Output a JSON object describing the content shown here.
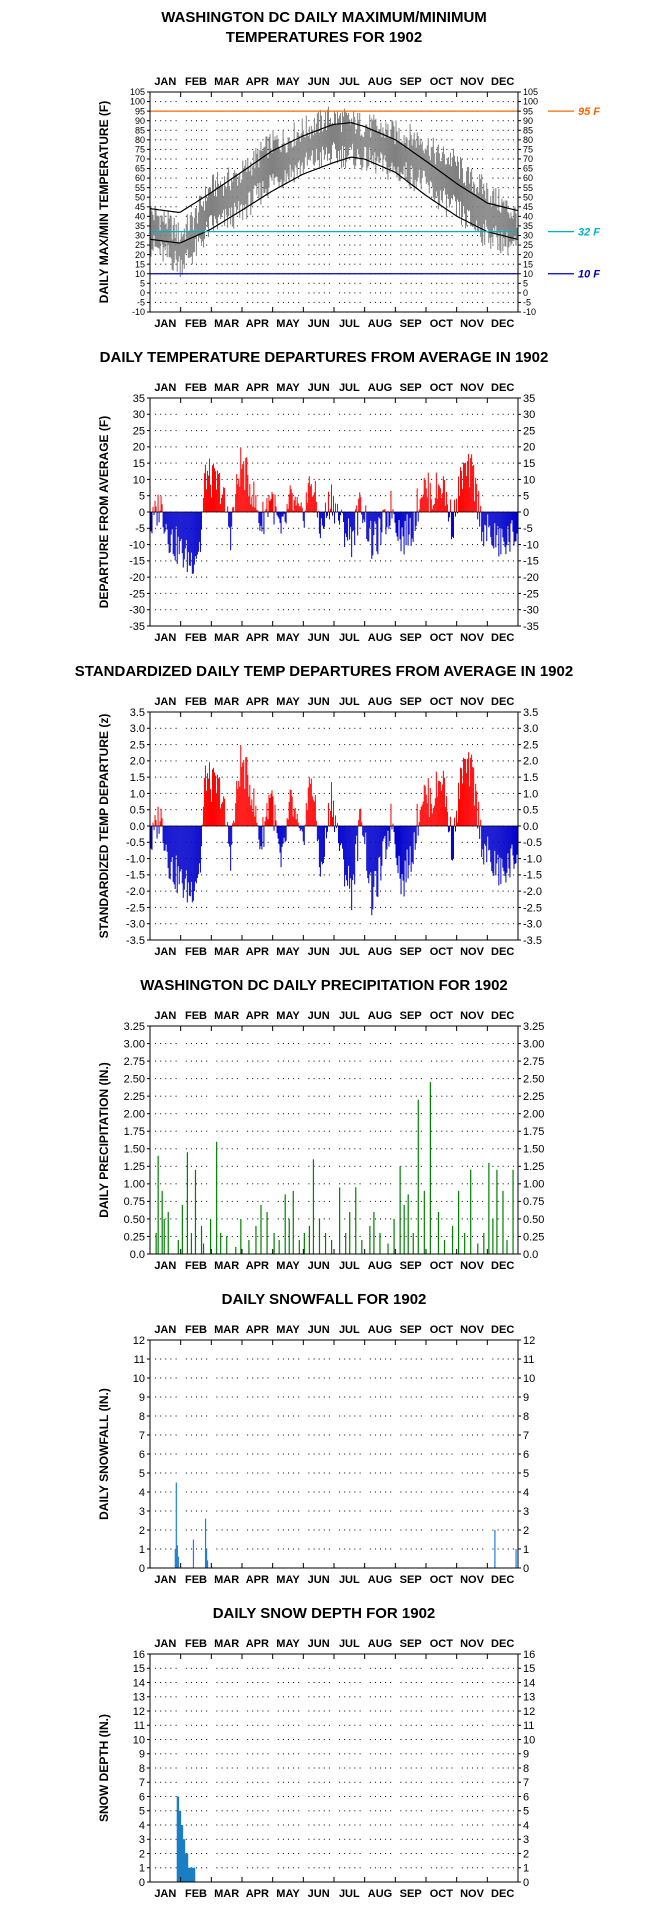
{
  "colors": {
    "axis": "#000000",
    "grid_dot": "#000000",
    "max_series": "#808080",
    "normal_lines": "#000000",
    "ref_95": "#ff6600",
    "ref_32": "#00b0c8",
    "ref_10": "#0000c0",
    "positive": "#ff0000",
    "negative": "#0000cc",
    "precip": "#008000",
    "snow": "#1e7fd8",
    "depth": "#1a7ec4"
  },
  "months": [
    "JAN",
    "FEB",
    "MAR",
    "APR",
    "MAY",
    "JUN",
    "JUL",
    "AUG",
    "SEP",
    "OCT",
    "NOV",
    "DEC"
  ],
  "chart_data": [
    {
      "id": "temps",
      "type": "line",
      "title_lines": [
        "WASHINGTON DC DAILY MAXIMUM/MINIMUM",
        "TEMPERATURES FOR 1902"
      ],
      "ylabel": "DAILY MAX/MIN TEMPERATURE (F)",
      "ylim": [
        -10,
        105
      ],
      "ytick_step": 5,
      "yticks": [
        "-10",
        "-5",
        "0",
        "5",
        "10",
        "15",
        "20",
        "25",
        "30",
        "35",
        "40",
        "45",
        "50",
        "55",
        "60",
        "65",
        "70",
        "75",
        "80",
        "85",
        "90",
        "95",
        "100",
        "105"
      ],
      "reference_lines": [
        {
          "value": 95,
          "label": "95 F",
          "color_key": "ref_95"
        },
        {
          "value": 32,
          "label": "32 F",
          "color_key": "ref_32"
        },
        {
          "value": 10,
          "label": "10 F",
          "color_key": "ref_10"
        }
      ],
      "daily_range_keypoints": {
        "day": [
          1,
          15,
          30,
          45,
          60,
          75,
          90,
          105,
          120,
          135,
          150,
          165,
          180,
          195,
          210,
          225,
          240,
          255,
          270,
          285,
          300,
          315,
          330,
          345,
          365
        ],
        "max": [
          42,
          38,
          30,
          40,
          55,
          58,
          62,
          70,
          78,
          80,
          85,
          88,
          92,
          90,
          88,
          86,
          84,
          82,
          80,
          72,
          70,
          60,
          55,
          48,
          40
        ],
        "min": [
          25,
          20,
          15,
          22,
          35,
          38,
          42,
          50,
          58,
          62,
          66,
          70,
          72,
          72,
          70,
          68,
          64,
          62,
          58,
          50,
          45,
          38,
          32,
          28,
          24
        ]
      },
      "normal_keypoints": {
        "day": [
          1,
          30,
          60,
          91,
          121,
          152,
          182,
          200,
          213,
          244,
          274,
          305,
          335,
          365
        ],
        "max": [
          44,
          42,
          52,
          63,
          74,
          82,
          88,
          89,
          87,
          80,
          69,
          57,
          47,
          43
        ],
        "min": [
          28,
          26,
          33,
          43,
          53,
          62,
          68,
          71,
          70,
          63,
          51,
          40,
          32,
          28
        ]
      }
    },
    {
      "id": "departures",
      "type": "bar",
      "title_lines": [
        "DAILY TEMPERATURE DEPARTURES FROM AVERAGE IN 1902"
      ],
      "ylabel": "DEPARTURE FROM AVERAGE (F)",
      "ylim": [
        -35,
        35
      ],
      "ytick_step": 5,
      "yticks": [
        "-35",
        "-30",
        "-25",
        "-20",
        "-15",
        "-10",
        "-5",
        "0",
        "5",
        "10",
        "15",
        "20",
        "25",
        "30",
        "35"
      ],
      "keypoints": {
        "day": [
          1,
          10,
          20,
          30,
          40,
          50,
          55,
          60,
          70,
          80,
          90,
          100,
          110,
          120,
          130,
          140,
          150,
          160,
          170,
          180,
          190,
          200,
          210,
          220,
          230,
          240,
          250,
          260,
          270,
          280,
          290,
          300,
          310,
          320,
          330,
          340,
          350,
          365
        ],
        "value": [
          -5,
          3,
          -8,
          -12,
          -15,
          -10,
          12,
          10,
          8,
          -6,
          15,
          8,
          -4,
          6,
          -8,
          4,
          -3,
          10,
          -6,
          5,
          -4,
          -8,
          3,
          -10,
          -6,
          2,
          -8,
          -5,
          8,
          5,
          9,
          -4,
          12,
          12,
          -5,
          -8,
          -10,
          -6
        ]
      }
    },
    {
      "id": "zscores",
      "type": "bar",
      "title_lines": [
        "STANDARDIZED DAILY TEMP DEPARTURES FROM AVERAGE IN 1902"
      ],
      "ylabel": "STANDARDIZED TEMP DEPARTURE (z)",
      "ylim": [
        -3.5,
        3.5
      ],
      "ytick_step": 0.5,
      "yticks": [
        "-3.5",
        "-3.0",
        "-2.5",
        "-2.0",
        "-1.5",
        "-1.0",
        "-0.5",
        "0.0",
        "0.5",
        "1.0",
        "1.5",
        "2.0",
        "2.5",
        "3.0",
        "3.5"
      ],
      "keypoints": {
        "day": [
          1,
          10,
          20,
          30,
          40,
          50,
          55,
          60,
          70,
          80,
          90,
          100,
          110,
          120,
          130,
          140,
          150,
          160,
          170,
          180,
          190,
          200,
          210,
          220,
          230,
          240,
          250,
          260,
          270,
          280,
          290,
          300,
          310,
          320,
          330,
          340,
          350,
          365
        ],
        "value": [
          -0.6,
          0.4,
          -1.2,
          -1.7,
          -2.0,
          -1.2,
          1.6,
          1.3,
          1.1,
          -0.8,
          2.0,
          1.2,
          -0.6,
          1.2,
          -1.4,
          0.8,
          -0.7,
          1.6,
          -1.5,
          1.0,
          -1.0,
          -2.0,
          0.5,
          -2.3,
          -1.2,
          0.3,
          -1.8,
          -0.8,
          1.0,
          0.8,
          1.6,
          -0.7,
          1.8,
          1.6,
          -0.6,
          -1.2,
          -1.5,
          -0.8
        ]
      }
    },
    {
      "id": "precip",
      "type": "bar",
      "title_lines": [
        "WASHINGTON DC DAILY PRECIPITATION FOR 1902"
      ],
      "ylabel": "DAILY PRECIPITATION (IN.)",
      "ylim": [
        0,
        3.25
      ],
      "ytick_step": 0.25,
      "yticks": [
        "0.0",
        "0.25",
        "0.50",
        "0.75",
        "1.00",
        "1.25",
        "1.50",
        "1.75",
        "2.00",
        "2.25",
        "2.50",
        "2.75",
        "3.00",
        "3.25"
      ],
      "days": [
        6,
        8,
        12,
        14,
        18,
        28,
        32,
        37,
        41,
        45,
        51,
        53,
        60,
        66,
        70,
        76,
        85,
        90,
        98,
        105,
        110,
        116,
        123,
        128,
        134,
        138,
        142,
        148,
        153,
        158,
        162,
        168,
        174,
        180,
        188,
        194,
        198,
        204,
        210,
        218,
        222,
        228,
        236,
        242,
        248,
        252,
        256,
        261,
        266,
        272,
        278,
        286,
        292,
        300,
        306,
        312,
        318,
        325,
        331,
        336,
        340,
        344,
        350,
        354,
        360
      ],
      "values": [
        0.3,
        1.4,
        0.9,
        0.5,
        0.6,
        0.2,
        0.7,
        1.45,
        0.3,
        1.2,
        0.4,
        0.15,
        0.5,
        1.6,
        0.3,
        0.25,
        0.1,
        0.5,
        0.2,
        0.4,
        0.7,
        0.6,
        0.3,
        0.2,
        0.85,
        0.5,
        0.9,
        0.2,
        0.3,
        0.4,
        1.35,
        0.5,
        0.3,
        0.2,
        0.95,
        0.3,
        0.6,
        0.95,
        0.2,
        0.4,
        0.6,
        0.3,
        0.15,
        0.5,
        1.25,
        0.7,
        0.85,
        0.3,
        2.2,
        0.9,
        2.45,
        0.6,
        0.2,
        0.4,
        0.9,
        0.3,
        1.2,
        0.15,
        0.3,
        1.3,
        0.5,
        1.2,
        0.9,
        0.2,
        1.2
      ]
    },
    {
      "id": "snowfall",
      "type": "bar",
      "title_lines": [
        "DAILY SNOWFALL FOR 1902"
      ],
      "ylabel": "DAILY SNOWFALL (IN.)",
      "ylim": [
        0,
        12
      ],
      "ytick_step": 1,
      "yticks": [
        "0",
        "1",
        "2",
        "3",
        "4",
        "5",
        "6",
        "7",
        "8",
        "9",
        "10",
        "11",
        "12"
      ],
      "days": [
        25,
        26,
        27,
        28,
        43,
        55,
        56,
        57,
        342,
        363
      ],
      "values": [
        1.0,
        4.5,
        1.2,
        0.6,
        1.5,
        2.6,
        1.0,
        0.4,
        2.0,
        1.0
      ]
    },
    {
      "id": "snowdepth",
      "type": "area",
      "title_lines": [
        "DAILY SNOW DEPTH FOR 1902"
      ],
      "ylabel": "SNOW DEPTH (IN.)",
      "ylim": [
        0,
        16
      ],
      "ytick_step": 1,
      "yticks": [
        "0",
        "1",
        "2",
        "3",
        "4",
        "5",
        "6",
        "7",
        "8",
        "9",
        "10",
        "11",
        "12",
        "13",
        "14",
        "15",
        "16"
      ],
      "days": [
        27,
        28,
        29,
        30,
        31,
        32,
        33,
        34,
        35,
        36,
        37,
        38,
        39,
        40,
        41,
        42,
        43,
        44
      ],
      "values": [
        6,
        6,
        5,
        5,
        4,
        4,
        3,
        3,
        2,
        2,
        2,
        1,
        1,
        1,
        1,
        1,
        1,
        1
      ]
    }
  ]
}
